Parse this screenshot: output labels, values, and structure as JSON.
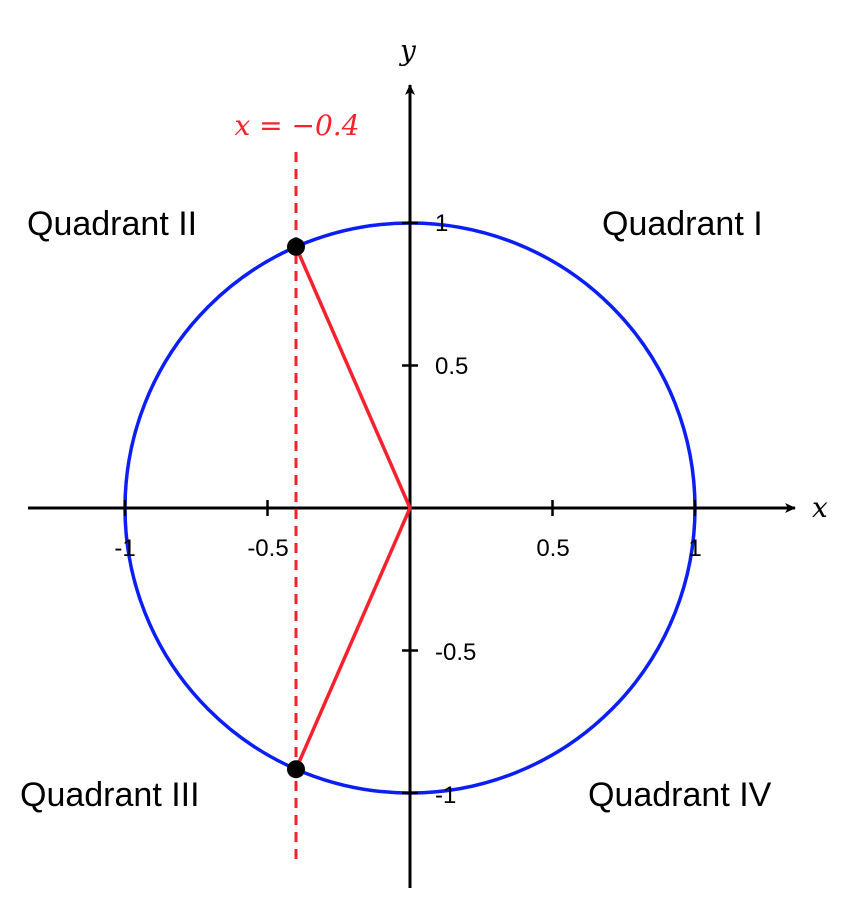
{
  "axes": {
    "x_label": "x",
    "y_label": "y"
  },
  "x_ticks": [
    "-1",
    "-0.5",
    "0.5",
    "1"
  ],
  "y_ticks": [
    "1",
    "0.5",
    "-0.5",
    "-1"
  ],
  "quadrants": {
    "q1": "Quadrant I",
    "q2": "Quadrant II",
    "q3": "Quadrant III",
    "q4": "Quadrant IV"
  },
  "vertical_line": {
    "label": "x = −0.4",
    "x": -0.4
  },
  "circle": {
    "radius": 1
  },
  "colors": {
    "circle": "#0a1ef5",
    "line": "#f5222d",
    "axes": "#000000"
  }
}
